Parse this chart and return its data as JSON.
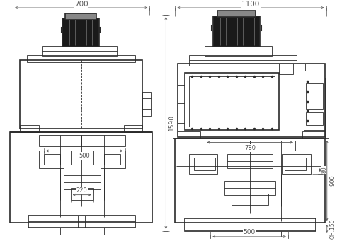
{
  "fig_width": 4.77,
  "fig_height": 3.41,
  "dpi": 100,
  "line_color": "#2a2a2a",
  "dim_color": "#555555",
  "lw_main": 1.2,
  "lw_thin": 0.6,
  "lw_dim": 0.5,
  "annotations": {
    "left_width": "700",
    "right_width": "1100",
    "height_1590": "1590",
    "left_d500": "500",
    "left_d220": "220",
    "right_d780": "780",
    "right_d80": "80",
    "right_d900": "900",
    "right_OH150": "OH:150",
    "right_d500": "500"
  }
}
